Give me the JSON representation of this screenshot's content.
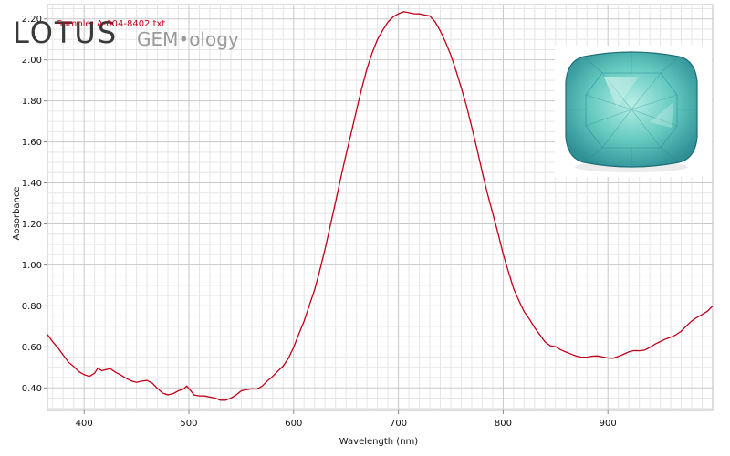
{
  "logo": {
    "brand": "LOTUS",
    "sub": "GEM•ology"
  },
  "sample_label": "Sample: A-004-8402.txt",
  "gem_photo": {
    "kind": "cushion-cut-gem",
    "colors": {
      "light": "#b8efe6",
      "mid": "#63c9bf",
      "dark": "#2e8f95",
      "edge": "#1f6f78"
    }
  },
  "chart_data": {
    "type": "line",
    "title": "",
    "xlabel": "Wavelength (nm)",
    "ylabel": "Absorbance",
    "xlim": [
      365,
      1000
    ],
    "ylim": [
      0.29,
      2.27
    ],
    "x_ticks": [
      400,
      500,
      600,
      700,
      800,
      900
    ],
    "x_tick_labels": [
      "400",
      "500",
      "600",
      "700",
      "800",
      "900"
    ],
    "y_ticks": [
      0.4,
      0.6,
      0.8,
      1.0,
      1.2,
      1.4,
      1.6,
      1.8,
      2.0,
      2.2
    ],
    "y_tick_labels": [
      "0.40",
      "0.60",
      "0.80",
      "1.00",
      "1.20",
      "1.40",
      "1.60",
      "1.80",
      "2.00",
      "2.20"
    ],
    "grid": true,
    "line_color": "#c0001a",
    "series": [
      {
        "name": "",
        "x": [
          365,
          370,
          375,
          380,
          385,
          390,
          395,
          400,
          405,
          410,
          413,
          417,
          420,
          425,
          430,
          435,
          440,
          445,
          450,
          455,
          460,
          465,
          470,
          475,
          480,
          485,
          490,
          495,
          498,
          502,
          505,
          510,
          515,
          520,
          525,
          530,
          535,
          540,
          545,
          550,
          555,
          560,
          565,
          570,
          575,
          580,
          585,
          590,
          595,
          600,
          605,
          610,
          615,
          620,
          625,
          630,
          635,
          640,
          645,
          650,
          655,
          660,
          665,
          670,
          675,
          680,
          685,
          690,
          695,
          700,
          705,
          710,
          715,
          720,
          725,
          730,
          735,
          740,
          745,
          750,
          755,
          760,
          765,
          770,
          775,
          780,
          785,
          790,
          795,
          800,
          805,
          810,
          815,
          820,
          825,
          830,
          835,
          840,
          845,
          850,
          855,
          860,
          865,
          870,
          875,
          880,
          885,
          890,
          895,
          900,
          905,
          910,
          915,
          920,
          925,
          930,
          935,
          940,
          945,
          950,
          955,
          960,
          965,
          970,
          975,
          980,
          985,
          990,
          995,
          1000
        ],
        "y": [
          0.66,
          0.62,
          0.59,
          0.56,
          0.53,
          0.51,
          0.48,
          0.46,
          0.45,
          0.47,
          0.5,
          0.49,
          0.49,
          0.49,
          0.47,
          0.46,
          0.45,
          0.44,
          0.43,
          0.43,
          0.43,
          0.42,
          0.4,
          0.38,
          0.37,
          0.37,
          0.38,
          0.39,
          0.41,
          0.39,
          0.37,
          0.36,
          0.355,
          0.35,
          0.35,
          0.345,
          0.345,
          0.35,
          0.36,
          0.38,
          0.39,
          0.4,
          0.4,
          0.41,
          0.43,
          0.45,
          0.48,
          0.51,
          0.55,
          0.6,
          0.66,
          0.72,
          0.8,
          0.88,
          0.98,
          1.08,
          1.19,
          1.3,
          1.42,
          1.54,
          1.65,
          1.76,
          1.86,
          1.95,
          2.03,
          2.1,
          2.15,
          2.19,
          2.21,
          2.22,
          2.23,
          2.23,
          2.23,
          2.23,
          2.22,
          2.21,
          2.18,
          2.14,
          2.09,
          2.03,
          1.95,
          1.86,
          1.77,
          1.67,
          1.57,
          1.46,
          1.35,
          1.25,
          1.15,
          1.05,
          0.97,
          0.89,
          0.83,
          0.77,
          0.73,
          0.69,
          0.66,
          0.63,
          0.61,
          0.6,
          0.58,
          0.57,
          0.565,
          0.56,
          0.555,
          0.55,
          0.55,
          0.55,
          0.55,
          0.55,
          0.55,
          0.555,
          0.56,
          0.57,
          0.58,
          0.585,
          0.59,
          0.6,
          0.61,
          0.62,
          0.635,
          0.65,
          0.665,
          0.68,
          0.7,
          0.72,
          0.74,
          0.76,
          0.78,
          0.8
        ]
      }
    ]
  }
}
